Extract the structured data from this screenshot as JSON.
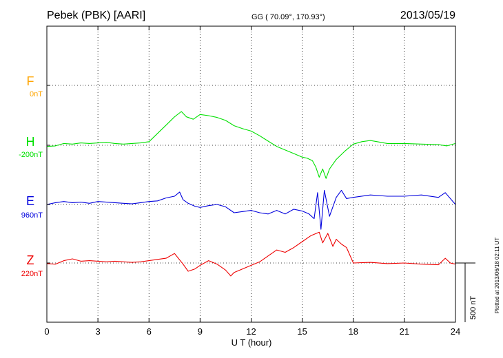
{
  "header": {
    "station": "Pebek (PBK)  [AARI]",
    "coords": "GG ( 70.09°, 170.93°)",
    "date": "2013/05/19"
  },
  "footer": {
    "plotted": "Plotted at 2013/06/18 02:11  UT"
  },
  "scale_bar": {
    "label": "500 nT",
    "value_nT": 500
  },
  "chart_data": {
    "type": "line",
    "xlabel": "U T (hour)",
    "xlim": [
      0,
      24
    ],
    "xticks": [
      0,
      3,
      6,
      9,
      12,
      15,
      18,
      21,
      24
    ],
    "grid": true,
    "series": [
      {
        "name": "F",
        "baseline_label": "0nT",
        "color": "#ffa500",
        "x": [],
        "y": []
      },
      {
        "name": "H",
        "baseline_label": "-200nT",
        "color": "#00e000",
        "x": [
          0,
          0.5,
          1,
          1.5,
          2,
          2.5,
          3,
          3.5,
          4,
          4.5,
          5,
          5.5,
          6,
          6.5,
          7,
          7.5,
          7.9,
          8.2,
          8.6,
          9,
          9.5,
          10,
          10.5,
          11,
          11.5,
          12,
          12.5,
          13,
          13.5,
          14,
          14.5,
          15,
          15.3,
          15.6,
          15.8,
          16,
          16.2,
          16.4,
          16.6,
          17,
          17.5,
          18,
          18.5,
          19,
          20,
          21,
          22,
          23,
          23.5,
          24
        ],
        "y": [
          -210,
          -205,
          -185,
          -190,
          -180,
          -185,
          -180,
          -175,
          -185,
          -190,
          -185,
          -180,
          -170,
          -100,
          -30,
          40,
          85,
          40,
          20,
          60,
          50,
          35,
          10,
          -35,
          -60,
          -80,
          -120,
          -165,
          -210,
          -240,
          -270,
          -300,
          -310,
          -330,
          -385,
          -470,
          -400,
          -480,
          -400,
          -320,
          -250,
          -190,
          -170,
          -160,
          -185,
          -185,
          -190,
          -195,
          -205,
          -185
        ]
      },
      {
        "name": "E",
        "baseline_label": "960nT",
        "color": "#0000dd",
        "x": [
          0,
          0.5,
          1,
          1.5,
          2,
          2.5,
          3,
          3.5,
          4,
          4.5,
          5,
          5.5,
          6,
          6.5,
          7,
          7.5,
          7.8,
          8,
          8.3,
          8.7,
          9,
          9.5,
          10,
          10.5,
          11,
          11.5,
          12,
          12.5,
          13,
          13.5,
          14,
          14.5,
          15,
          15.4,
          15.7,
          15.9,
          16.1,
          16.3,
          16.6,
          17,
          17.3,
          17.6,
          18,
          19,
          20,
          21,
          22,
          23,
          23.4,
          24
        ],
        "y": [
          960,
          975,
          985,
          975,
          980,
          970,
          985,
          980,
          975,
          970,
          965,
          975,
          985,
          990,
          1015,
          1030,
          1065,
          1000,
          970,
          945,
          935,
          950,
          960,
          940,
          890,
          900,
          910,
          890,
          880,
          910,
          880,
          920,
          905,
          880,
          840,
          1060,
          750,
          1080,
          860,
          1020,
          1080,
          1010,
          1020,
          1040,
          1030,
          1030,
          1040,
          1020,
          1060,
          960
        ]
      },
      {
        "name": "Z",
        "baseline_label": "220nT",
        "color": "#ee0000",
        "x": [
          0,
          0.5,
          1,
          1.5,
          2,
          2.5,
          3,
          3.5,
          4,
          4.5,
          5,
          5.5,
          6,
          6.5,
          7,
          7.5,
          8,
          8.3,
          8.7,
          9,
          9.5,
          10,
          10.5,
          10.8,
          11,
          11.5,
          12,
          12.5,
          13,
          13.5,
          14,
          14.5,
          15,
          15.5,
          16,
          16.2,
          16.5,
          16.8,
          17,
          17.3,
          17.6,
          18,
          19,
          20,
          21,
          22,
          23,
          23.4,
          23.7,
          24
        ],
        "y": [
          215,
          210,
          240,
          255,
          235,
          240,
          235,
          230,
          235,
          230,
          225,
          230,
          240,
          250,
          260,
          300,
          210,
          150,
          170,
          200,
          240,
          210,
          160,
          110,
          140,
          170,
          200,
          230,
          280,
          330,
          310,
          350,
          400,
          450,
          480,
          390,
          470,
          360,
          420,
          380,
          350,
          220,
          225,
          215,
          220,
          210,
          205,
          260,
          220,
          210
        ]
      }
    ]
  }
}
